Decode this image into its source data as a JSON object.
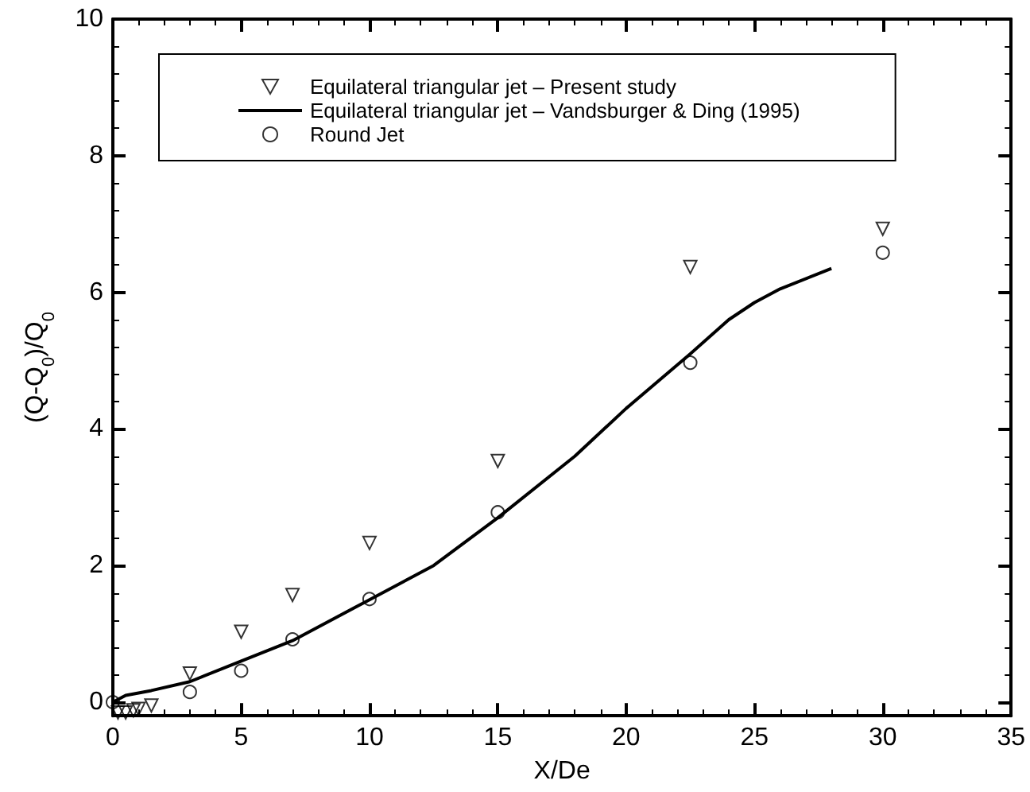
{
  "chart_data": {
    "type": "scatter",
    "xlabel": "X/De",
    "ylabel": "(Q-Q$_{0}$)/Q$_{0}$",
    "xlim": [
      0,
      35
    ],
    "xticks": [
      0,
      5,
      10,
      15,
      20,
      25,
      30,
      35
    ],
    "ylim": [
      -0.2,
      10
    ],
    "yticks": [
      0,
      2,
      4,
      6,
      8,
      10
    ],
    "grid": false,
    "legend": "top left",
    "series": [
      {
        "name": "Equilateral triangular jet – Present study",
        "marker": "triangle",
        "color": "#000000",
        "x": [
          0.2,
          0.5,
          0.8,
          1.0,
          1.5,
          3,
          5,
          7,
          10,
          15,
          22.5,
          30
        ],
        "values": [
          -0.15,
          -0.15,
          -0.12,
          -0.1,
          -0.05,
          0.42,
          1.03,
          1.57,
          2.33,
          3.53,
          6.37,
          6.93
        ]
      },
      {
        "name": "Equilateral triangular jet – Vandsburger & Ding (1995)",
        "type": "line",
        "marker": "none",
        "line_style": "solid",
        "color": "#000000",
        "x": [
          0,
          0.5,
          1.5,
          3,
          5,
          7,
          10,
          12.5,
          15,
          18,
          20,
          22.5,
          24,
          25,
          26,
          28
        ],
        "values": [
          0.0,
          0.1,
          0.17,
          0.3,
          0.6,
          0.9,
          1.5,
          2.0,
          2.7,
          3.6,
          4.3,
          5.1,
          5.6,
          5.85,
          6.05,
          6.35
        ]
      },
      {
        "name": "Round Jet",
        "marker": "circle",
        "color": "#000000",
        "x": [
          0,
          3,
          5,
          7,
          10,
          15,
          22.5,
          30
        ],
        "values": [
          0.0,
          0.15,
          0.46,
          0.92,
          1.51,
          2.78,
          4.97,
          6.58
        ]
      }
    ]
  }
}
